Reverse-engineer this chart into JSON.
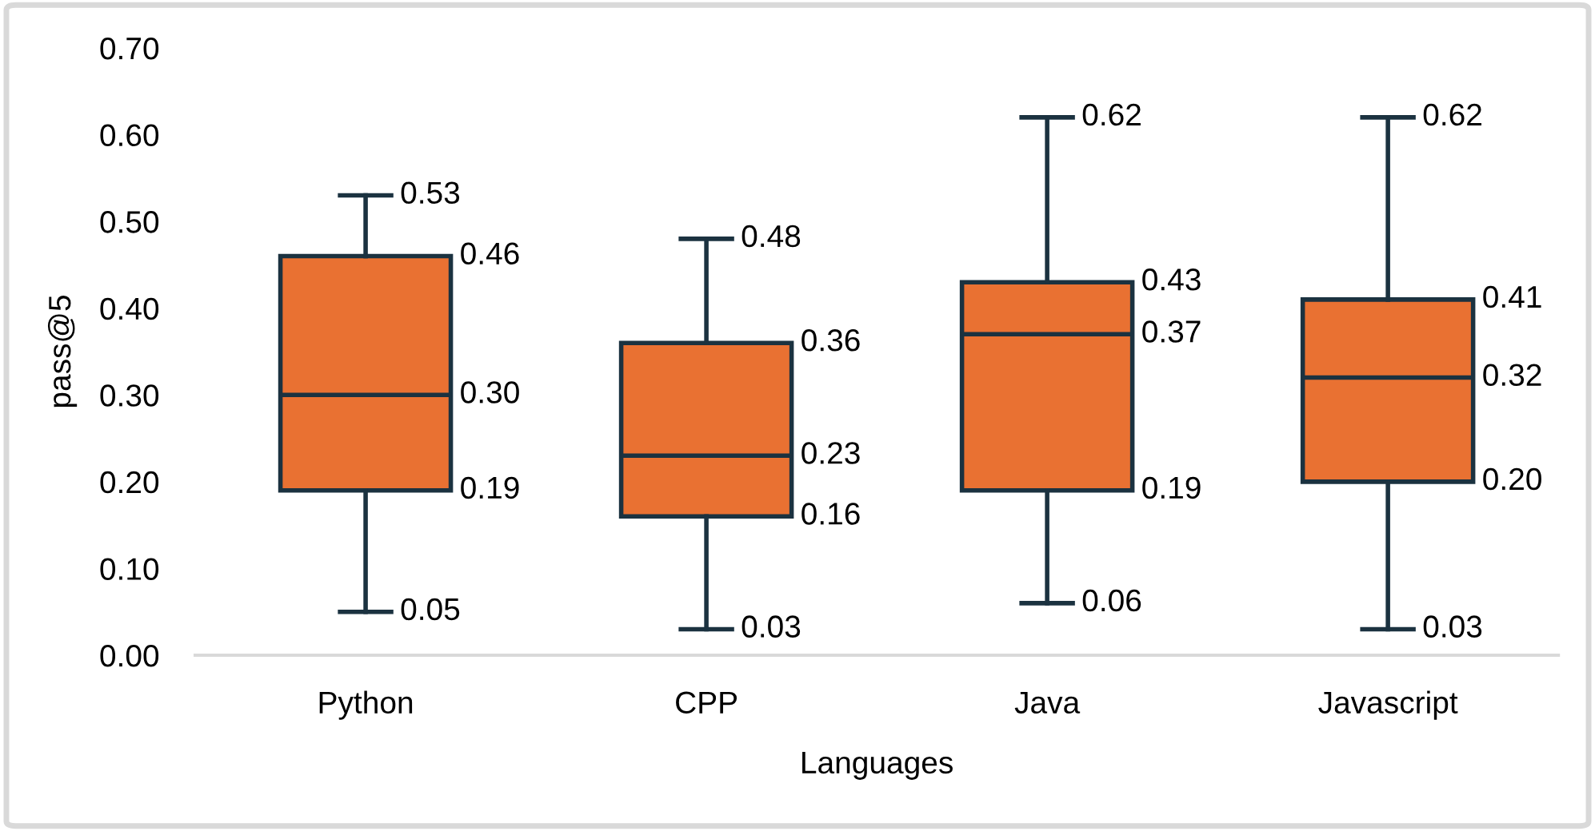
{
  "chart_data": {
    "type": "box",
    "xlabel": "Languages",
    "ylabel": "pass@5",
    "categories": [
      "Python",
      "CPP",
      "Java",
      "Javascript"
    ],
    "series": [
      {
        "color": "#e97132",
        "boxes": [
          {
            "low": 0.05,
            "q1": 0.19,
            "median": 0.3,
            "q3": 0.46,
            "high": 0.53
          },
          {
            "low": 0.03,
            "q1": 0.16,
            "median": 0.23,
            "q3": 0.36,
            "high": 0.48
          },
          {
            "low": 0.06,
            "q1": 0.19,
            "median": 0.37,
            "q3": 0.43,
            "high": 0.62
          },
          {
            "low": 0.03,
            "q1": 0.2,
            "median": 0.32,
            "q3": 0.41,
            "high": 0.62
          }
        ],
        "value_labels": [
          {
            "low": "0.05",
            "q1": "0.19",
            "median": "0.30",
            "q3": "0.46",
            "high": "0.53"
          },
          {
            "low": "0.03",
            "q1": "0.16",
            "median": "0.23",
            "q3": "0.36",
            "high": "0.48"
          },
          {
            "low": "0.06",
            "q1": "0.19",
            "median": "0.37",
            "q3": "0.43",
            "high": "0.62"
          },
          {
            "low": "0.03",
            "q1": "0.20",
            "median": "0.32",
            "q3": "0.41",
            "high": "0.62"
          }
        ]
      }
    ],
    "ylim": [
      0,
      0.7
    ],
    "yticks": [
      {
        "value": 0,
        "label": "0.00"
      },
      {
        "value": 0.1,
        "label": "0.10"
      },
      {
        "value": 0.2,
        "label": "0.20"
      },
      {
        "value": 0.3,
        "label": "0.30"
      },
      {
        "value": 0.4,
        "label": "0.40"
      },
      {
        "value": 0.5,
        "label": "0.50"
      },
      {
        "value": 0.6,
        "label": "0.60"
      },
      {
        "value": 0.7,
        "label": "0.70"
      }
    ]
  }
}
